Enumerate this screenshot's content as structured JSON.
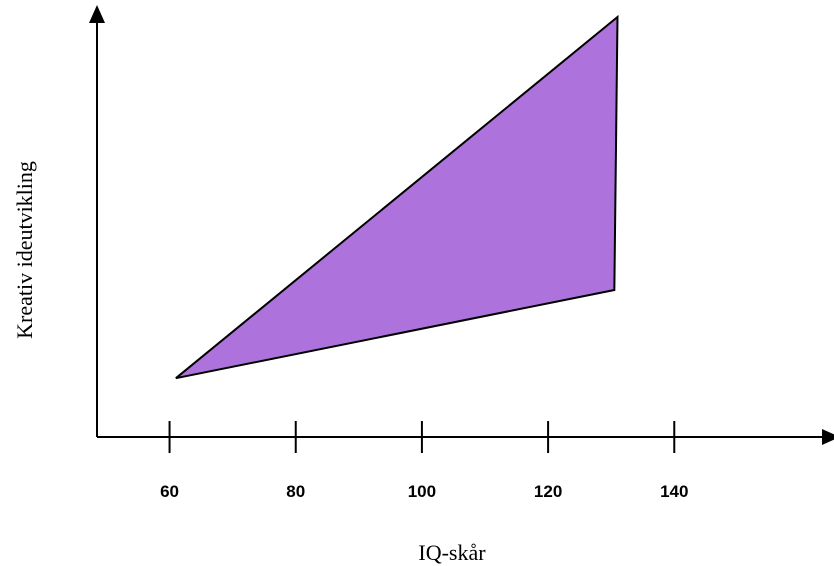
{
  "chart_data": {
    "type": "area",
    "xlabel": "IQ-skår",
    "ylabel": "Kreativ ideutvikling",
    "x_ticks": [
      60,
      80,
      100,
      120,
      140
    ],
    "xlim": [
      48.5,
      165
    ],
    "ylim": [
      0,
      10
    ],
    "y_ticks_shown": false,
    "grid": false,
    "series": [
      {
        "shape": "polygon",
        "color": "#ad72dc",
        "points": [
          {
            "x": 61,
            "y": 1.4
          },
          {
            "x": 131,
            "y": 10
          },
          {
            "x": 130.5,
            "y": 3.5
          }
        ]
      }
    ]
  }
}
